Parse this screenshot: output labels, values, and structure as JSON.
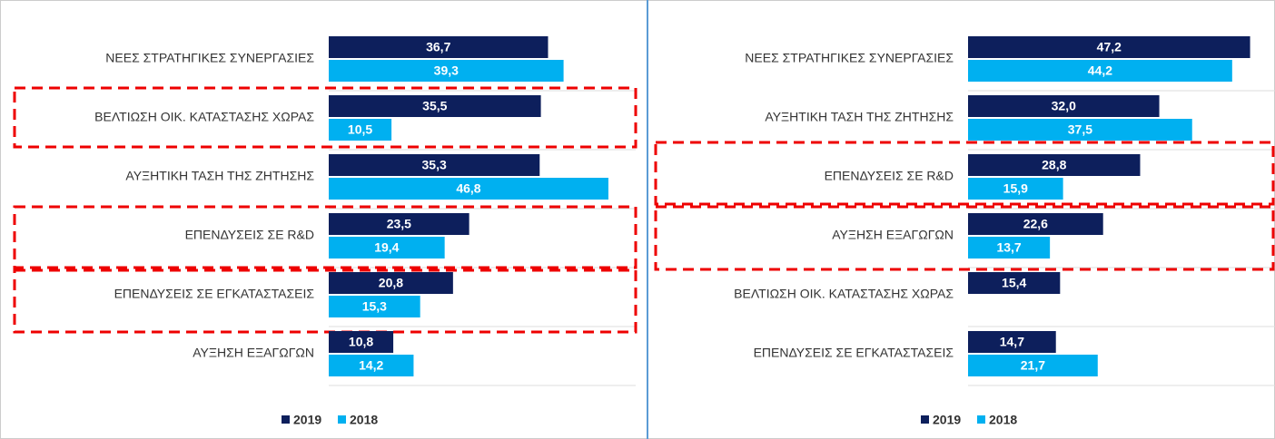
{
  "chart_data": [
    {
      "type": "bar",
      "orientation": "horizontal",
      "categories": [
        "ΝΕΕΣ ΣΤΡΑΤΗΓΙΚΕΣ ΣΥΝΕΡΓΑΣΙΕΣ",
        "ΒΕΛΤΙΩΣΗ ΟΙΚ. ΚΑΤΑΣΤΑΣΗΣ  ΧΩΡΑΣ",
        "ΑΥΞΗΤΙΚΗ ΤΑΣΗ ΤΗΣ ΖΗΤΗΣΗΣ",
        "ΕΠΕΝΔΥΣΕΙΣ ΣΕ R&D",
        "ΕΠΕΝΔΥΣΕΙΣ ΣΕ ΕΓΚΑΤΑΣΤΑΣΕΙΣ",
        "ΑΥΞΗΣΗ ΕΞΑΓΩΓΩΝ"
      ],
      "series": [
        {
          "name": "2019",
          "color": "#0d1f5c",
          "values": [
            36.7,
            35.5,
            35.3,
            23.5,
            20.8,
            10.8
          ],
          "value_labels": [
            "36,7",
            "35,5",
            "35,3",
            "23,5",
            "20,8",
            "10,8"
          ]
        },
        {
          "name": "2018",
          "color": "#00b0f0",
          "values": [
            39.3,
            10.5,
            46.8,
            19.4,
            15.3,
            14.2
          ],
          "value_labels": [
            "39,3",
            "10,5",
            "46,8",
            "19,4",
            "15,3",
            "14,2"
          ]
        }
      ]
    },
    {
      "type": "bar",
      "orientation": "horizontal",
      "categories": [
        "ΝΕΕΣ ΣΤΡΑΤΗΓΙΚΕΣ ΣΥΝΕΡΓΑΣΙΕΣ",
        "ΑΥΞΗΤΙΚΗ ΤΑΣΗ ΤΗΣ ΖΗΤΗΣΗΣ",
        "ΕΠΕΝΔΥΣΕΙΣ ΣΕ R&D",
        "ΑΥΞΗΣΗ ΕΞΑΓΩΓΩΝ",
        "ΒΕΛΤΙΩΣΗ ΟΙΚ. ΚΑΤΑΣΤΑΣΗΣ  ΧΩΡΑΣ",
        "ΕΠΕΝΔΥΣΕΙΣ ΣΕ ΕΓΚΑΤΑΣΤΑΣΕΙΣ"
      ],
      "series": [
        {
          "name": "2019",
          "color": "#0d1f5c",
          "values": [
            47.2,
            32.0,
            28.8,
            22.6,
            15.4,
            14.7
          ],
          "value_labels": [
            "47,2",
            "32,0",
            "28,8",
            "22,6",
            "15,4",
            "14,7"
          ]
        },
        {
          "name": "2018",
          "color": "#00b0f0",
          "values": [
            44.2,
            37.5,
            15.9,
            13.7,
            null,
            21.7
          ],
          "value_labels": [
            "44,2",
            "37,5",
            "15,9",
            "13,7",
            null,
            "21,7"
          ]
        }
      ]
    }
  ]
}
